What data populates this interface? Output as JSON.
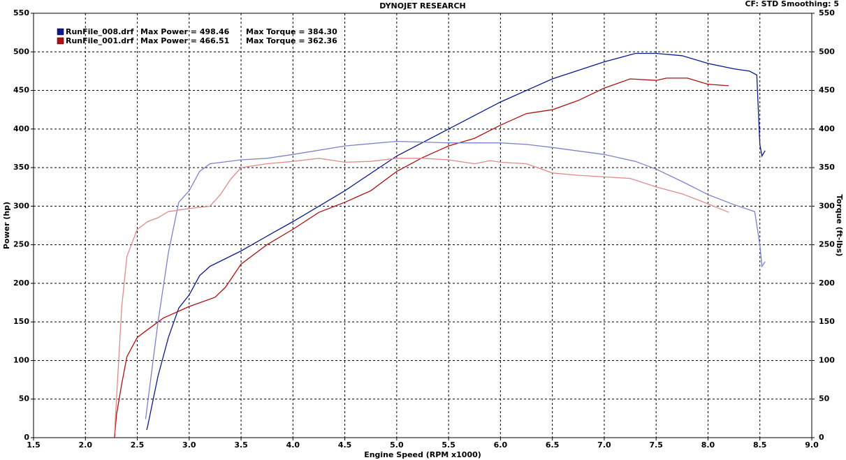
{
  "chart_data": {
    "type": "line",
    "title": "DYNOJET RESEARCH",
    "subtitle": "CF: STD  Smoothing: 5",
    "x_label": "Engine Speed (RPM x1000)",
    "y_label": "Power (hp)",
    "y2_label": "Torque (ft-lbs)",
    "xlim": [
      1.5,
      9.0
    ],
    "xticks": [
      1.5,
      {
        "value": 2,
        "label": "2.0"
      },
      2.5,
      {
        "value": 3,
        "label": "3.0"
      },
      3.5,
      {
        "value": 4,
        "label": "4.0"
      },
      4.5,
      {
        "value": 5,
        "label": "5.0"
      },
      5.5,
      {
        "value": 6,
        "label": "6.0"
      },
      6.5,
      {
        "value": 7,
        "label": "7.0"
      },
      7.5,
      {
        "value": 8,
        "label": "8.0"
      },
      8.5,
      {
        "value": 9,
        "label": "9.0"
      }
    ],
    "ylim": [
      0,
      550
    ],
    "yticks": [
      0,
      50,
      100,
      150,
      200,
      250,
      300,
      350,
      400,
      450,
      500,
      550
    ],
    "y2lim": [
      0,
      550
    ],
    "y2ticks": [
      0,
      50,
      100,
      150,
      200,
      250,
      300,
      350,
      400,
      450,
      500,
      550
    ],
    "grid": true,
    "legend_position": "upper-left",
    "legend_notes": [
      [
        "Max Power = 498.46",
        "Max Torque = 384.30"
      ],
      [
        "Max Power = 466.51",
        "Max Torque = 362.36"
      ]
    ],
    "series": [
      {
        "name": "RunFile_008.drf",
        "color": "#0a1a8c",
        "x": [
          2.59,
          2.6,
          2.7,
          2.8,
          2.9,
          3.0,
          3.1,
          3.2,
          3.5,
          3.8,
          4.0,
          4.5,
          5.0,
          5.5,
          6.0,
          6.5,
          7.0,
          7.3,
          7.5,
          7.75,
          8.0,
          8.25,
          8.4,
          8.47,
          8.5,
          8.52,
          8.55
        ],
        "values": [
          10,
          15,
          80,
          130,
          168,
          185,
          210,
          222,
          242,
          265,
          280,
          320,
          365,
          400,
          435,
          465,
          487,
          498,
          498,
          495,
          485,
          478,
          475,
          470,
          380,
          365,
          372
        ]
      },
      {
        "name": "RunFile_001.drf",
        "color": "#b01010",
        "x": [
          2.28,
          2.3,
          2.35,
          2.4,
          2.5,
          2.6,
          2.75,
          3.0,
          3.25,
          3.35,
          3.5,
          3.75,
          4.0,
          4.25,
          4.5,
          4.75,
          5.0,
          5.25,
          5.5,
          5.75,
          6.0,
          6.25,
          6.5,
          6.75,
          7.0,
          7.25,
          7.5,
          7.6,
          7.8,
          8.0,
          8.2
        ],
        "values": [
          0,
          30,
          70,
          105,
          130,
          140,
          155,
          170,
          182,
          195,
          225,
          250,
          270,
          292,
          305,
          320,
          345,
          363,
          378,
          388,
          405,
          420,
          425,
          437,
          453,
          465,
          463,
          466,
          466,
          458,
          456
        ]
      },
      {
        "color": "#7a82c8",
        "axis": "y2",
        "x": [
          2.58,
          2.7,
          2.8,
          2.9,
          3.0,
          3.1,
          3.2,
          3.5,
          3.75,
          4.0,
          4.5,
          5.0,
          5.5,
          6.0,
          6.25,
          6.5,
          7.0,
          7.3,
          7.5,
          7.75,
          8.0,
          8.25,
          8.45,
          8.5,
          8.52,
          8.55
        ],
        "values": [
          24,
          150,
          240,
          305,
          320,
          345,
          355,
          360,
          362,
          367,
          378,
          384,
          382,
          382,
          380,
          376,
          367,
          358,
          348,
          332,
          315,
          302,
          293,
          250,
          222,
          228
        ]
      },
      {
        "color": "#e08a8a",
        "axis": "y2",
        "x": [
          2.28,
          2.35,
          2.4,
          2.5,
          2.6,
          2.7,
          2.8,
          3.0,
          3.2,
          3.3,
          3.4,
          3.5,
          3.75,
          4.0,
          4.25,
          4.5,
          4.75,
          5.0,
          5.25,
          5.5,
          5.75,
          5.9,
          6.0,
          6.25,
          6.5,
          6.75,
          7.0,
          7.25,
          7.5,
          7.75,
          8.0,
          8.2
        ],
        "values": [
          5,
          170,
          235,
          270,
          280,
          285,
          293,
          297,
          300,
          315,
          335,
          350,
          355,
          358,
          362,
          357,
          358,
          362,
          362,
          360,
          355,
          359,
          357,
          355,
          343,
          340,
          338,
          336,
          325,
          316,
          303,
          292
        ]
      }
    ]
  }
}
